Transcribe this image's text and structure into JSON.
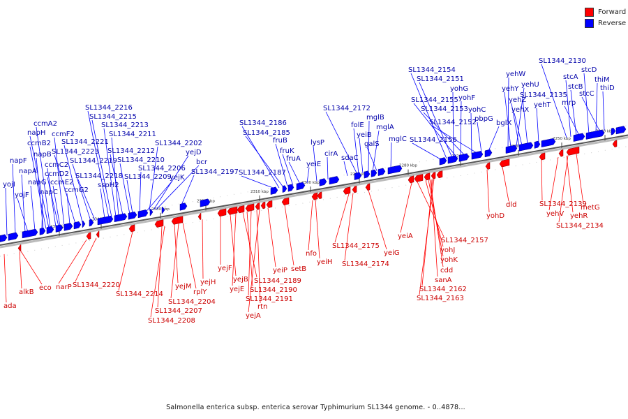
{
  "legend": {
    "forward_label": "Forward",
    "reverse_label": "Reverse",
    "forward_color": "#ff0000",
    "reverse_color": "#0000ff"
  },
  "caption": "Salmonella enterica subsp. enterica serovar Typhimurium SL1344 genome. - 0..4878...",
  "colors": {
    "axis": "#999999",
    "axis_dark": "#555555",
    "forward": "#ff0000",
    "reverse": "#0000ff"
  },
  "ticks": [
    "2350 kbp",
    "2340 kbp",
    "2330 kbp",
    "2320 kbp",
    "2310 kbp",
    "2300 kbp",
    "2290 kbp",
    "2280 kbp",
    "2270 kbp",
    "2260 kbp",
    "2250 kbp",
    "2240 kbp"
  ],
  "reverse_genes": [
    "yojI",
    "napF",
    "napA",
    "yojF",
    "napG",
    "napC",
    "napB",
    "ccmB2",
    "napH",
    "ccmA2",
    "ccmC2",
    "ccmD2",
    "ccmE2",
    "ccmF2",
    "ccmG2",
    "SL1344_2223",
    "SL1344_2221",
    "SL1344_2219",
    "SL1344_2218",
    "sspH2",
    "SL1344_2216",
    "SL1344_2215",
    "SL1344_2213",
    "SL1344_2211",
    "SL1344_2212",
    "SL1344_2210",
    "SL1344_2209",
    "SL1344_2206",
    "yejK",
    "SL1344_2202",
    "yejD",
    "bcr",
    "SL1344_2197",
    "SL1344_2187",
    "SL1344_2186",
    "SL1344_2185",
    "fruB",
    "fruK",
    "fruA",
    "yeiE",
    "lysP",
    "cirA",
    "sdaC",
    "SL1344_2172",
    "folE",
    "yeiB",
    "mglB",
    "mglA",
    "galS",
    "mglC",
    "SL1344_2156",
    "SL1344_2154",
    "SL1344_2151",
    "yohG",
    "SL1344_2155",
    "yohF",
    "SL1344_2153",
    "yohC",
    "SL1344_2152",
    "pbpG",
    "bglX",
    "yehW",
    "yehY",
    "yehU",
    "yehZ",
    "yehX",
    "SL1344_2135",
    "yehT",
    "SL1344_2130",
    "stcA",
    "stcB",
    "mrp",
    "stcD",
    "thiM",
    "stcC",
    "thiD"
  ],
  "forward_genes": [
    "ada",
    "alkB",
    "eco",
    "narP",
    "SL1344_2220",
    "SL1344_2214",
    "SL1344_2207",
    "SL1344_2208",
    "yejM",
    "SL1344_2204",
    "rplY",
    "yejH",
    "yejF",
    "yejB",
    "yejE",
    "SL1344_2189",
    "SL1344_2190",
    "SL1344_2191",
    "rtn",
    "yejA",
    "yeiP",
    "setB",
    "nfo",
    "yeiH",
    "SL1344_2175",
    "SL1344_2174",
    "yeiG",
    "yeiA",
    "SL1344_2157",
    "yohJ",
    "yohK",
    "cdd",
    "sanA",
    "SL1344_2162",
    "SL1344_2163",
    "yohD",
    "dld",
    "SL1344_2139",
    "yehV",
    "yehR",
    "SL1344_2134",
    "metG"
  ]
}
